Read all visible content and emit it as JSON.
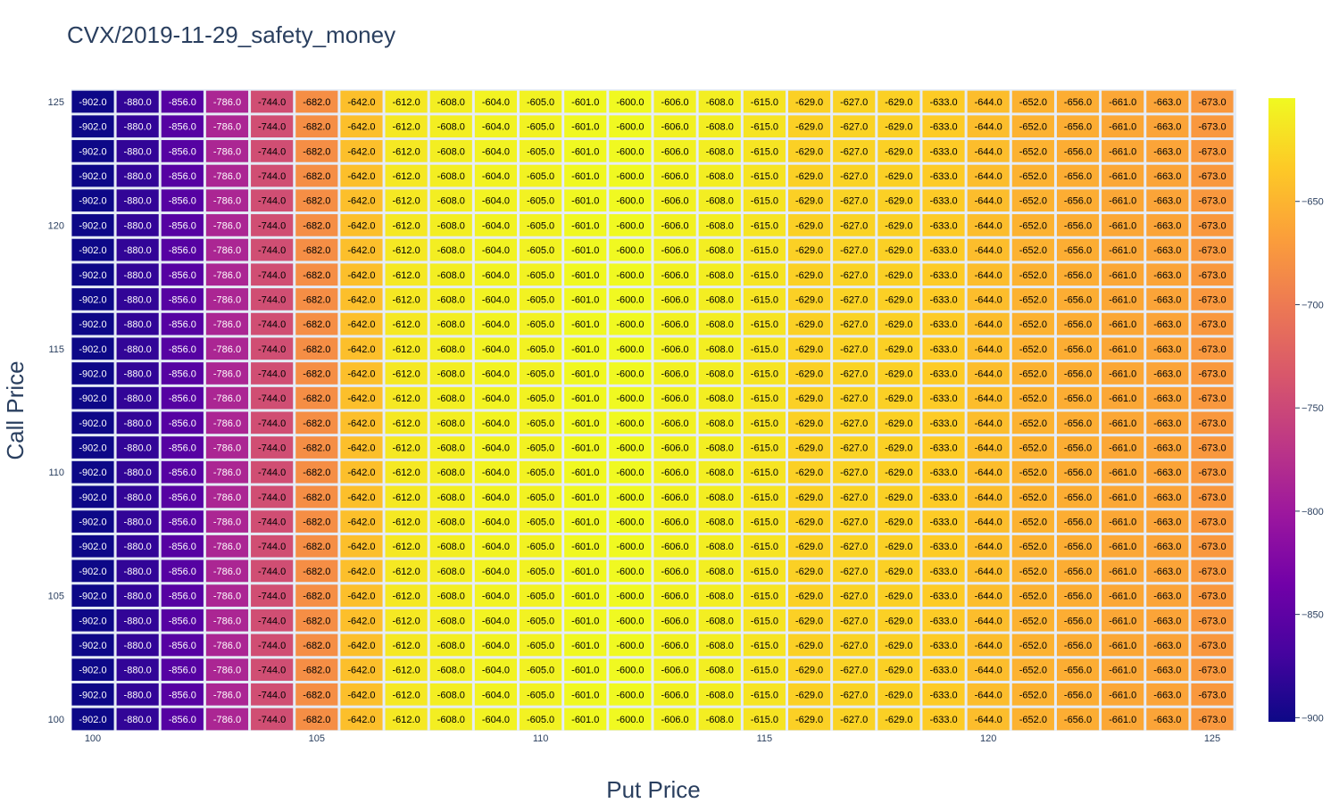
{
  "chart_data": {
    "type": "heatmap",
    "title": "CVX/2019-11-29_safety_money",
    "xlabel": "Put Price",
    "ylabel": "Call Price",
    "x": [
      100,
      101,
      102,
      103,
      104,
      105,
      106,
      107,
      108,
      109,
      110,
      111,
      112,
      113,
      114,
      115,
      116,
      117,
      118,
      119,
      120,
      121,
      122,
      123,
      124,
      125
    ],
    "y": [
      100,
      101,
      102,
      103,
      104,
      105,
      106,
      107,
      108,
      109,
      110,
      111,
      112,
      113,
      114,
      115,
      116,
      117,
      118,
      119,
      120,
      121,
      122,
      123,
      124,
      125
    ],
    "row_values": [
      -902.0,
      -880.0,
      -856.0,
      -786.0,
      -744.0,
      -682.0,
      -642.0,
      -612.0,
      -608.0,
      -604.0,
      -605.0,
      -601.0,
      -600.0,
      -606.0,
      -608.0,
      -615.0,
      -629.0,
      -627.0,
      -629.0,
      -633.0,
      -644.0,
      -652.0,
      -656.0,
      -661.0,
      -663.0,
      -673.0
    ],
    "note_rows_identical": true,
    "x_ticks": [
      100,
      105,
      110,
      115,
      120,
      125
    ],
    "y_ticks": [
      100,
      105,
      110,
      115,
      120,
      125
    ],
    "colorbar": {
      "ticks": [
        -900,
        -850,
        -800,
        -750,
        -700,
        -650
      ],
      "zmin": -902,
      "zmax": -600,
      "colorscale": "Plasma"
    },
    "grid": true
  }
}
